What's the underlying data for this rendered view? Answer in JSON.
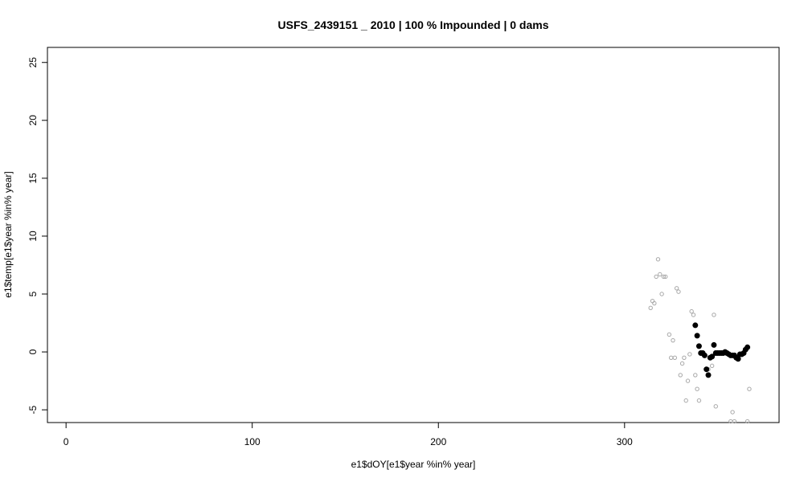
{
  "chart_data": {
    "type": "scatter",
    "title": "USFS_2439151 _ 2010   |   100  % Impounded |  0  dams",
    "xlabel": "e1$dOY[e1$year %in% year]",
    "ylabel": "e1$temp[e1$year %in% year]",
    "xlim": [
      -10,
      383
    ],
    "ylim": [
      -6.1,
      26.3
    ],
    "xticks": [
      0,
      100,
      200,
      300
    ],
    "yticks": [
      -5,
      0,
      5,
      10,
      15,
      20,
      25
    ],
    "grid": false,
    "series": [
      {
        "style": "open-circle",
        "color": "#a8a8a8",
        "points": [
          [
            314,
            3.8
          ],
          [
            315,
            4.4
          ],
          [
            316,
            4.2
          ],
          [
            317,
            6.5
          ],
          [
            318,
            8.0
          ],
          [
            319,
            6.7
          ],
          [
            320,
            5.0
          ],
          [
            321,
            6.5
          ],
          [
            322,
            6.5
          ],
          [
            324,
            1.5
          ],
          [
            325,
            -0.5
          ],
          [
            326,
            1.0
          ],
          [
            327,
            -0.5
          ],
          [
            328,
            5.5
          ],
          [
            329,
            5.2
          ],
          [
            330,
            -2.0
          ],
          [
            331,
            -1.0
          ],
          [
            332,
            -0.5
          ],
          [
            333,
            -4.2
          ],
          [
            334,
            -2.5
          ],
          [
            335,
            -0.2
          ],
          [
            336,
            3.5
          ],
          [
            337,
            3.2
          ],
          [
            338,
            -2.0
          ],
          [
            339,
            -3.2
          ],
          [
            340,
            -4.2
          ],
          [
            342,
            -0.2
          ],
          [
            345,
            -1.5
          ],
          [
            347,
            -1.2
          ],
          [
            348,
            3.2
          ],
          [
            349,
            -4.7
          ],
          [
            357,
            -6.0
          ],
          [
            358,
            -5.2
          ],
          [
            359,
            -6.0
          ],
          [
            366,
            -6.0
          ],
          [
            367,
            -3.2
          ]
        ]
      },
      {
        "style": "filled-circle",
        "color": "#000000",
        "points": [
          [
            338,
            2.3
          ],
          [
            339,
            1.4
          ],
          [
            340,
            0.5
          ],
          [
            341,
            -0.1
          ],
          [
            342,
            -0.1
          ],
          [
            343,
            -0.3
          ],
          [
            344,
            -1.5
          ],
          [
            345,
            -2.0
          ],
          [
            346,
            -0.5
          ],
          [
            347,
            -0.4
          ],
          [
            348,
            0.6
          ],
          [
            349,
            -0.1
          ],
          [
            350,
            -0.1
          ],
          [
            351,
            -0.1
          ],
          [
            352,
            -0.1
          ],
          [
            353,
            -0.1
          ],
          [
            354,
            0.0
          ],
          [
            355,
            -0.1
          ],
          [
            356,
            -0.2
          ],
          [
            357,
            -0.3
          ],
          [
            358,
            -0.3
          ],
          [
            359,
            -0.3
          ],
          [
            360,
            -0.5
          ],
          [
            361,
            -0.6
          ],
          [
            362,
            -0.2
          ],
          [
            363,
            -0.2
          ],
          [
            364,
            -0.1
          ],
          [
            365,
            0.2
          ],
          [
            366,
            0.4
          ]
        ]
      }
    ]
  }
}
